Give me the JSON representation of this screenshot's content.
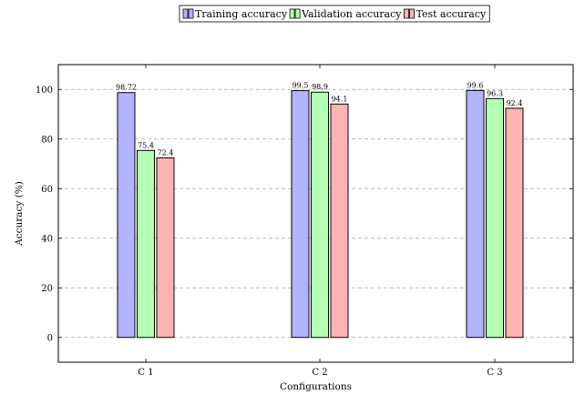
{
  "chart_data": {
    "type": "bar",
    "categories": [
      "C 1",
      "C 2",
      "C 3"
    ],
    "series": [
      {
        "name": "Training accuracy",
        "values": [
          98.72,
          99.5,
          99.6
        ],
        "labels": [
          "98.72",
          "99.5",
          "99.6"
        ],
        "color": "#b3b3ff"
      },
      {
        "name": "Validation accuracy",
        "values": [
          75.4,
          98.9,
          96.3
        ],
        "labels": [
          "75.4",
          "98.9",
          "96.3"
        ],
        "color": "#b3ffb3"
      },
      {
        "name": "Test accuracy",
        "values": [
          72.4,
          94.1,
          92.4
        ],
        "labels": [
          "72.4",
          "94.1",
          "92.4"
        ],
        "color": "#ffb3b3"
      }
    ],
    "xlabel": "Configurations",
    "ylabel": "Accuracy (%)",
    "ylim": [
      -10,
      110
    ],
    "yticks": [
      0,
      20,
      40,
      60,
      80,
      100
    ],
    "grid": "horizontal dashed",
    "legend_placement": "top-center"
  }
}
